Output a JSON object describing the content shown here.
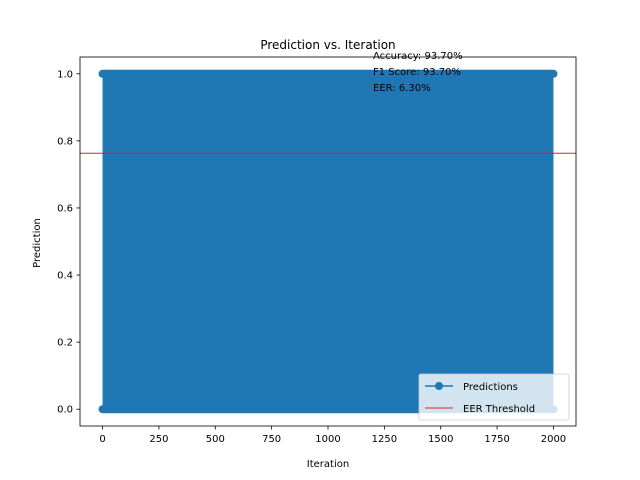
{
  "chart_data": {
    "type": "line",
    "title": "Prediction vs. Iteration",
    "xlabel": "Iteration",
    "ylabel": "Prediction",
    "xlim": [
      -100,
      2100
    ],
    "ylim": [
      -0.05,
      1.05
    ],
    "xticks": [
      0,
      250,
      500,
      750,
      1000,
      1250,
      1500,
      1750,
      2000
    ],
    "yticks": [
      0.0,
      0.2,
      0.4,
      0.6,
      0.8,
      1.0
    ],
    "xtick_labels": [
      "0",
      "250",
      "500",
      "750",
      "1000",
      "1250",
      "1500",
      "1750",
      "2000"
    ],
    "ytick_labels": [
      "0.0",
      "0.2",
      "0.4",
      "0.6",
      "0.8",
      "1.0"
    ],
    "grid": false,
    "legend_position": "bottom-right",
    "series": [
      {
        "name": "Predictions",
        "color": "#1f77b4",
        "marker": "circle",
        "x_range": [
          0,
          2000
        ],
        "values_set": [
          0,
          1
        ],
        "note_visible": "dense alternation between 0 and 1 over all iterations"
      }
    ],
    "threshold": {
      "name": "EER Threshold",
      "value": 0.763,
      "color": "#d62728"
    },
    "annotations": [
      "Accuracy: 93.70%",
      "F1 Score: 93.70%",
      "EER: 6.30%"
    ]
  }
}
